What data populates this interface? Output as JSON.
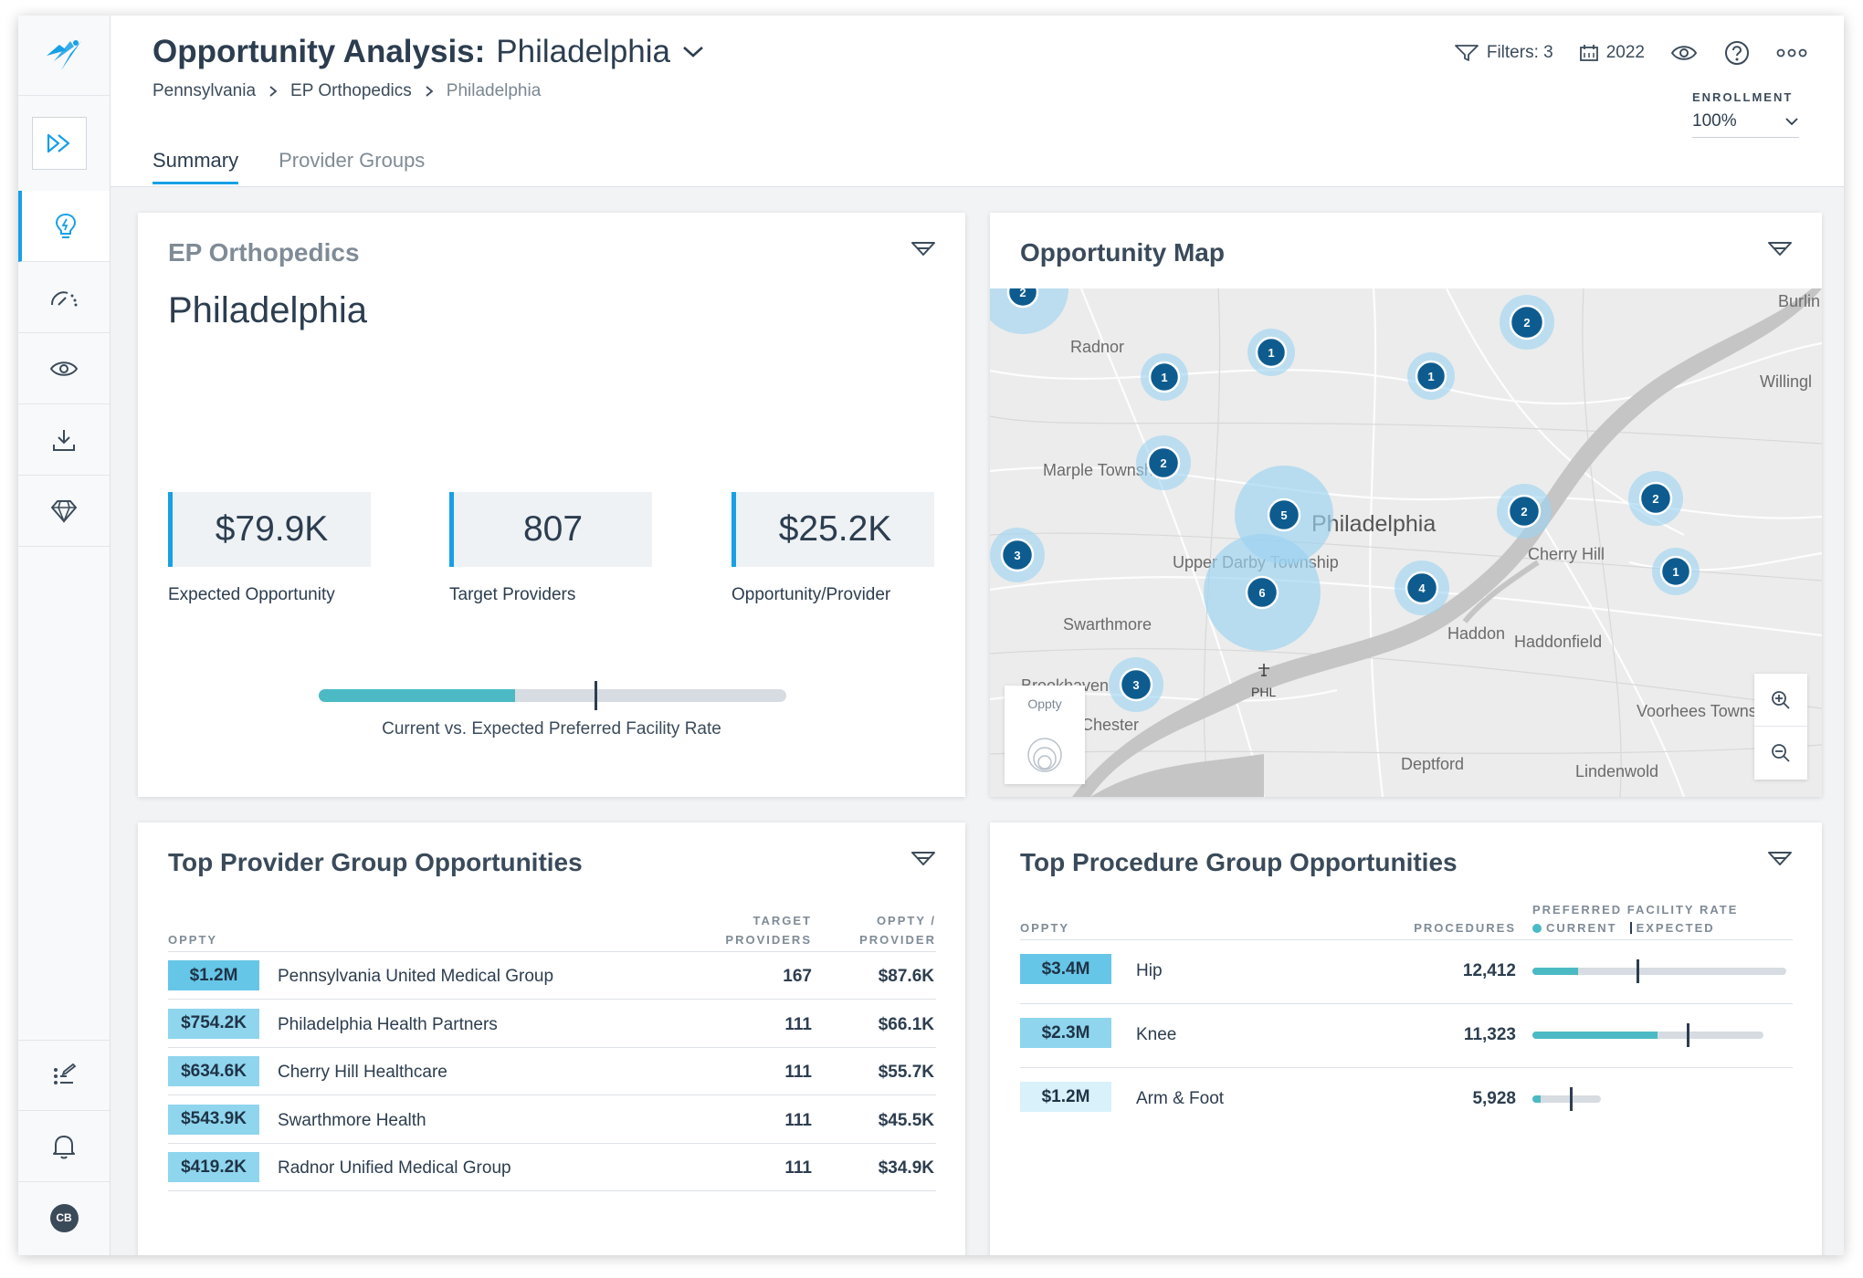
{
  "header": {
    "title": "Opportunity Analysis:",
    "city": "Philadelphia",
    "breadcrumb": [
      "Pennsylvania",
      "EP Orthopedics",
      "Philadelphia"
    ],
    "filters_label": "Filters: 3",
    "year_label": "2022",
    "enrollment_label": "ENROLLMENT",
    "enrollment_value": "100%",
    "tabs": [
      "Summary",
      "Provider Groups"
    ]
  },
  "sidebar": {
    "avatar": "CB",
    "icons": [
      "lightbulb-icon",
      "gauge-icon",
      "eye-icon",
      "download-icon",
      "diamond-icon",
      "checklist-icon",
      "bell-icon"
    ]
  },
  "summary": {
    "group": "EP Orthopedics",
    "city": "Philadelphia",
    "metrics": [
      {
        "value": "$79.9K",
        "label": "Expected Opportunity"
      },
      {
        "value": "807",
        "label": "Target Providers"
      },
      {
        "value": "$25.2K",
        "label": "Opportunity/Provider"
      }
    ],
    "facility_rate": {
      "current": 0.42,
      "expected": 0.59,
      "label": "Current vs. Expected Preferred Facility Rate"
    }
  },
  "map": {
    "title": "Opportunity Map",
    "legend_label": "Oppty",
    "places": [
      "Burlin",
      "Radnor",
      "Willingl",
      "Marple Township",
      "Philadelphia",
      "Cherry Hill",
      "Upper Darby Township",
      "Haddon",
      "Haddonfield",
      "Swarthmore",
      "Brookhaven",
      "Chester",
      "PHL",
      "Voorhees Township",
      "Deptford",
      "Lindenwold"
    ],
    "clusters": [
      "2",
      "1",
      "1",
      "1",
      "2",
      "2",
      "5",
      "2",
      "2",
      "3",
      "6",
      "4",
      "1",
      "3"
    ]
  },
  "provider_groups": {
    "title": "Top Provider Group Opportunities",
    "columns": {
      "oppty": "OPPTY",
      "target1": "TARGET",
      "target2": "PROVIDERS",
      "per1": "OPPTY /",
      "per2": "PROVIDER"
    },
    "rows": [
      {
        "oppty": "$1.2M",
        "name": "Pennsylvania United Medical Group",
        "target": "167",
        "per_provider": "$87.6K"
      },
      {
        "oppty": "$754.2K",
        "name": "Philadelphia Health Partners",
        "target": "111",
        "per_provider": "$66.1K"
      },
      {
        "oppty": "$634.6K",
        "name": "Cherry Hill Healthcare",
        "target": "111",
        "per_provider": "$55.7K"
      },
      {
        "oppty": "$543.9K",
        "name": "Swarthmore Health",
        "target": "111",
        "per_provider": "$45.5K"
      },
      {
        "oppty": "$419.2K",
        "name": "Radnor Unified Medical Group",
        "target": "111",
        "per_provider": "$34.9K"
      }
    ]
  },
  "procedure_groups": {
    "title": "Top Procedure Group Opportunities",
    "columns": {
      "oppty": "OPPTY",
      "procedures": "PROCEDURES",
      "pfr": "PREFERRED FACILITY RATE",
      "current": "CURRENT",
      "expected": "EXPECTED"
    },
    "rows": [
      {
        "oppty": "$3.4M",
        "name": "Hip",
        "procedures": "12,412",
        "current": 0.18,
        "expected": 0.41,
        "scale": 1.0
      },
      {
        "oppty": "$2.3M",
        "name": "Knee",
        "procedures": "11,323",
        "current": 0.54,
        "expected": 0.67,
        "scale": 0.91
      },
      {
        "oppty": "$1.2M",
        "name": "Arm & Foot",
        "procedures": "5,928",
        "current": 0.12,
        "expected": 0.55,
        "scale": 0.27
      }
    ]
  },
  "colors": {
    "accent": "#17a0e6",
    "teal": "#4bbac4",
    "badge_dark": "#66c6e8",
    "badge_mid": "#8fd5ee",
    "badge_light": "#d8f1fa",
    "cluster": "#0e5c8f"
  }
}
